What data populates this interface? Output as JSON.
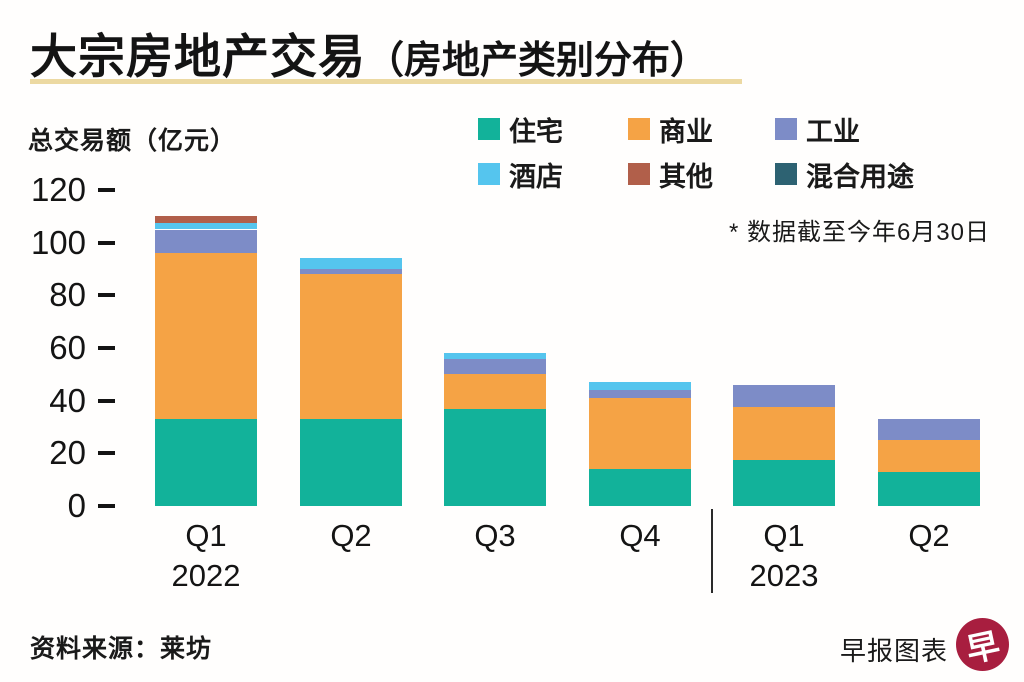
{
  "header": {
    "title_main": "大宗房地产交易",
    "title_paren": "（房地产类别分布）",
    "underline_color": "#ecd9a2"
  },
  "note": "* 数据截至今年6月30日",
  "footer": {
    "source": "资料来源：莱坊",
    "credit": "早报图表",
    "logo_glyph": "早",
    "logo_color": "#a81e3f"
  },
  "chart_data": {
    "type": "bar",
    "stacked": true,
    "title": "大宗房地产交易（房地产类别分布）",
    "ylabel": "总交易额（亿元）",
    "ylim": [
      0,
      120
    ],
    "yticks": [
      0,
      20,
      40,
      60,
      80,
      100,
      120
    ],
    "grid": false,
    "legend_position": "top-right",
    "categories": [
      "Q1",
      "Q2",
      "Q3",
      "Q4",
      "Q1",
      "Q2"
    ],
    "year_labels": [
      "2022",
      "",
      "",
      "",
      "2023",
      ""
    ],
    "series": [
      {
        "id": "residential",
        "name": "住宅",
        "color": "#12b29a",
        "values": [
          33,
          33,
          37,
          14,
          17.5,
          13
        ]
      },
      {
        "id": "commercial",
        "name": "商业",
        "color": "#f5a345",
        "values": [
          63,
          55,
          13,
          27,
          20,
          12
        ]
      },
      {
        "id": "industrial",
        "name": "工业",
        "color": "#7d8cc7",
        "values": [
          9,
          2,
          6,
          3,
          8.5,
          8
        ]
      },
      {
        "id": "hotel",
        "name": "酒店",
        "color": "#55c5ee",
        "values": [
          2.5,
          4,
          2,
          3,
          0,
          0
        ]
      },
      {
        "id": "others",
        "name": "其他",
        "color": "#b15f4a",
        "values": [
          2.5,
          0,
          0,
          0,
          0,
          0
        ]
      },
      {
        "id": "mixed-use",
        "name": "混合用途",
        "color": "#2d6272",
        "values": [
          0,
          0,
          0,
          0,
          0,
          0
        ]
      }
    ],
    "totals": [
      110,
      94,
      58,
      47,
      46,
      33
    ]
  }
}
